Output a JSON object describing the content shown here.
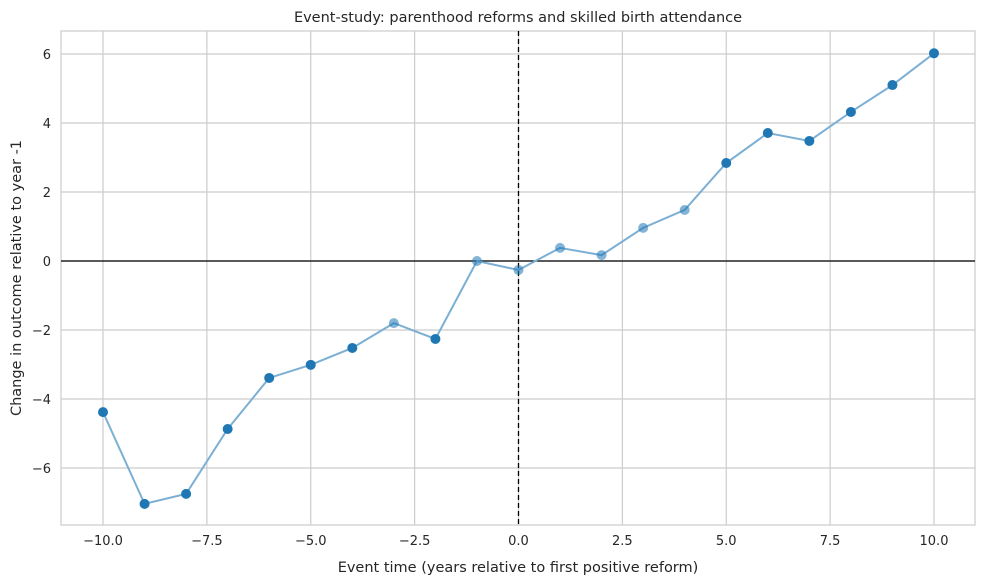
{
  "chart_data": {
    "type": "line",
    "title": "Event-study: parenthood reforms and skilled birth attendance",
    "xlabel": "Event time (years relative to first positive reform)",
    "ylabel": "Change in outcome relative to year -1",
    "xlim": [
      -11,
      11
    ],
    "ylim": [
      -7.6,
      6.7
    ],
    "grid": true,
    "x_ticks": [
      -10,
      -7.5,
      -5,
      -2.5,
      0,
      2.5,
      5,
      7.5,
      10
    ],
    "x_tick_labels": [
      "−10.0",
      "−7.5",
      "−5.0",
      "−2.5",
      "0.0",
      "2.5",
      "5.0",
      "7.5",
      "10.0"
    ],
    "y_ticks": [
      -6,
      -4,
      -2,
      0,
      2,
      4,
      6
    ],
    "y_tick_labels": [
      "−6",
      "−4",
      "−2",
      "0",
      "2",
      "4",
      "6"
    ],
    "reference_lines": {
      "horizontal_y": 0,
      "vertical_x": 0
    },
    "x": [
      -10,
      -9,
      -8,
      -7,
      -6,
      -5,
      -4,
      -3,
      -2,
      -1,
      0,
      1,
      2,
      3,
      4,
      5,
      6,
      7,
      8,
      9,
      10
    ],
    "y": [
      -4.38,
      -7.04,
      -6.75,
      -4.87,
      -3.39,
      -3.01,
      -2.52,
      -1.8,
      -2.26,
      0.0,
      -0.26,
      0.38,
      0.17,
      0.96,
      1.48,
      2.84,
      3.71,
      3.48,
      4.32,
      5.1,
      6.02
    ],
    "highlighted": [
      true,
      true,
      true,
      true,
      true,
      true,
      true,
      false,
      true,
      false,
      false,
      false,
      false,
      false,
      false,
      true,
      true,
      true,
      true,
      true,
      true
    ],
    "colors": {
      "line": "#7bafd4",
      "marker": "#1f77b4",
      "grid": "#cccccc"
    }
  }
}
